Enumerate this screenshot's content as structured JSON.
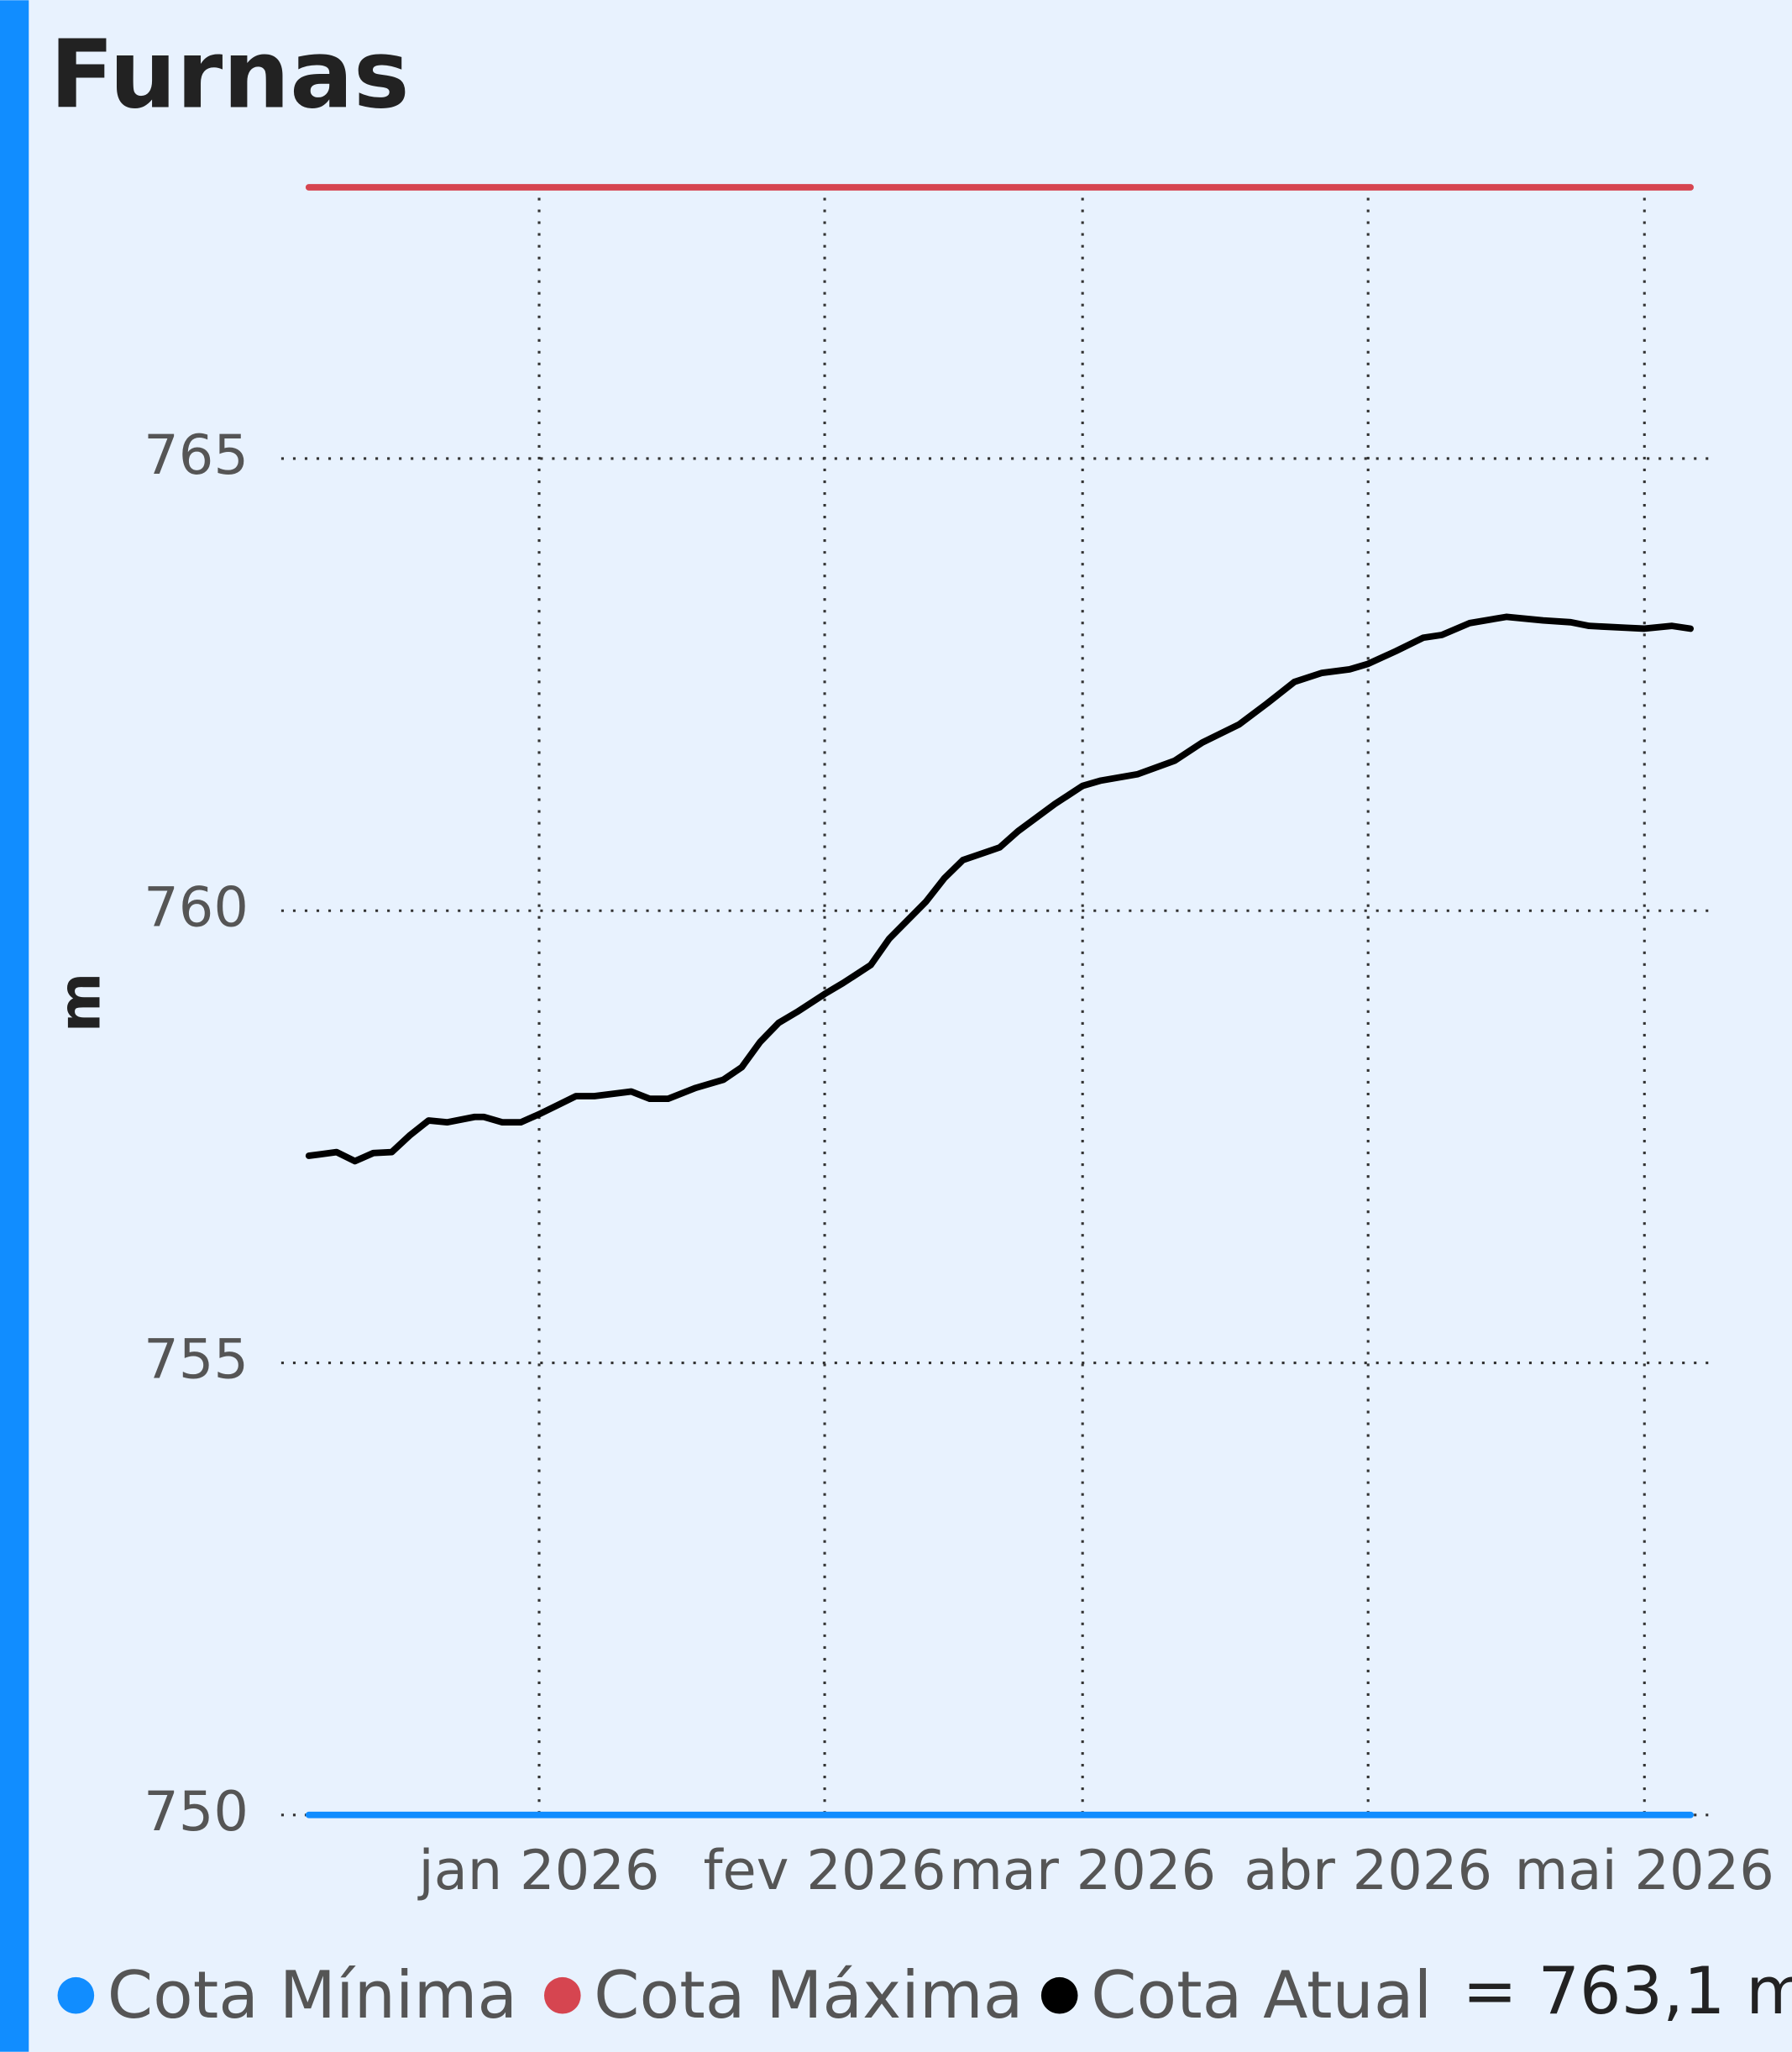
{
  "chart_data": {
    "type": "line",
    "title": "Furnas",
    "y_label": "m",
    "current_label": "= 763,1 m",
    "x": [
      -25,
      -22,
      -20,
      -18,
      -16,
      -14,
      -12,
      -10,
      -7,
      -6,
      -4,
      -2,
      0,
      2,
      4,
      6,
      10,
      12,
      14,
      17,
      20,
      22,
      24,
      26,
      28,
      31,
      33,
      36,
      38,
      42,
      44,
      46,
      50,
      52,
      56,
      59,
      61,
      65,
      69,
      72,
      76,
      79,
      82,
      85,
      88,
      90,
      93,
      96,
      98,
      101,
      105,
      109,
      112,
      114,
      118,
      120,
      123,
      125
    ],
    "series": [
      {
        "name": "Cota Mínima",
        "color": "#118dff",
        "value": 750
      },
      {
        "name": "Cota Máxima",
        "color": "#d64550",
        "value": 768
      },
      {
        "name": "Cota Atual",
        "color": "#000000",
        "values": [
          757.29,
          757.33,
          757.23,
          757.32,
          757.33,
          757.52,
          757.68,
          757.66,
          757.72,
          757.72,
          757.66,
          757.66,
          757.75,
          757.85,
          757.95,
          757.95,
          758.0,
          757.92,
          757.92,
          758.04,
          758.13,
          758.27,
          758.55,
          758.76,
          758.88,
          759.08,
          759.2,
          759.4,
          759.69,
          760.1,
          760.36,
          760.56,
          760.7,
          760.88,
          761.18,
          761.38,
          761.44,
          761.51,
          761.66,
          761.86,
          762.06,
          762.29,
          762.53,
          762.63,
          762.67,
          762.73,
          762.87,
          763.02,
          763.05,
          763.18,
          763.25,
          763.21,
          763.19,
          763.15,
          763.13,
          763.12,
          763.15,
          763.12
        ]
      }
    ],
    "xlim": [
      -28,
      127.5
    ],
    "xticks": [
      {
        "value": 0,
        "label": "jan 2026"
      },
      {
        "value": 31,
        "label": "fev 2026"
      },
      {
        "value": 59,
        "label": "mar 2026"
      },
      {
        "value": 90,
        "label": "abr 2026"
      },
      {
        "value": 120,
        "label": "mai 2026"
      }
    ],
    "ylim": [
      750,
      768
    ],
    "yticks": [
      750,
      755,
      760,
      765
    ],
    "grid": true
  }
}
